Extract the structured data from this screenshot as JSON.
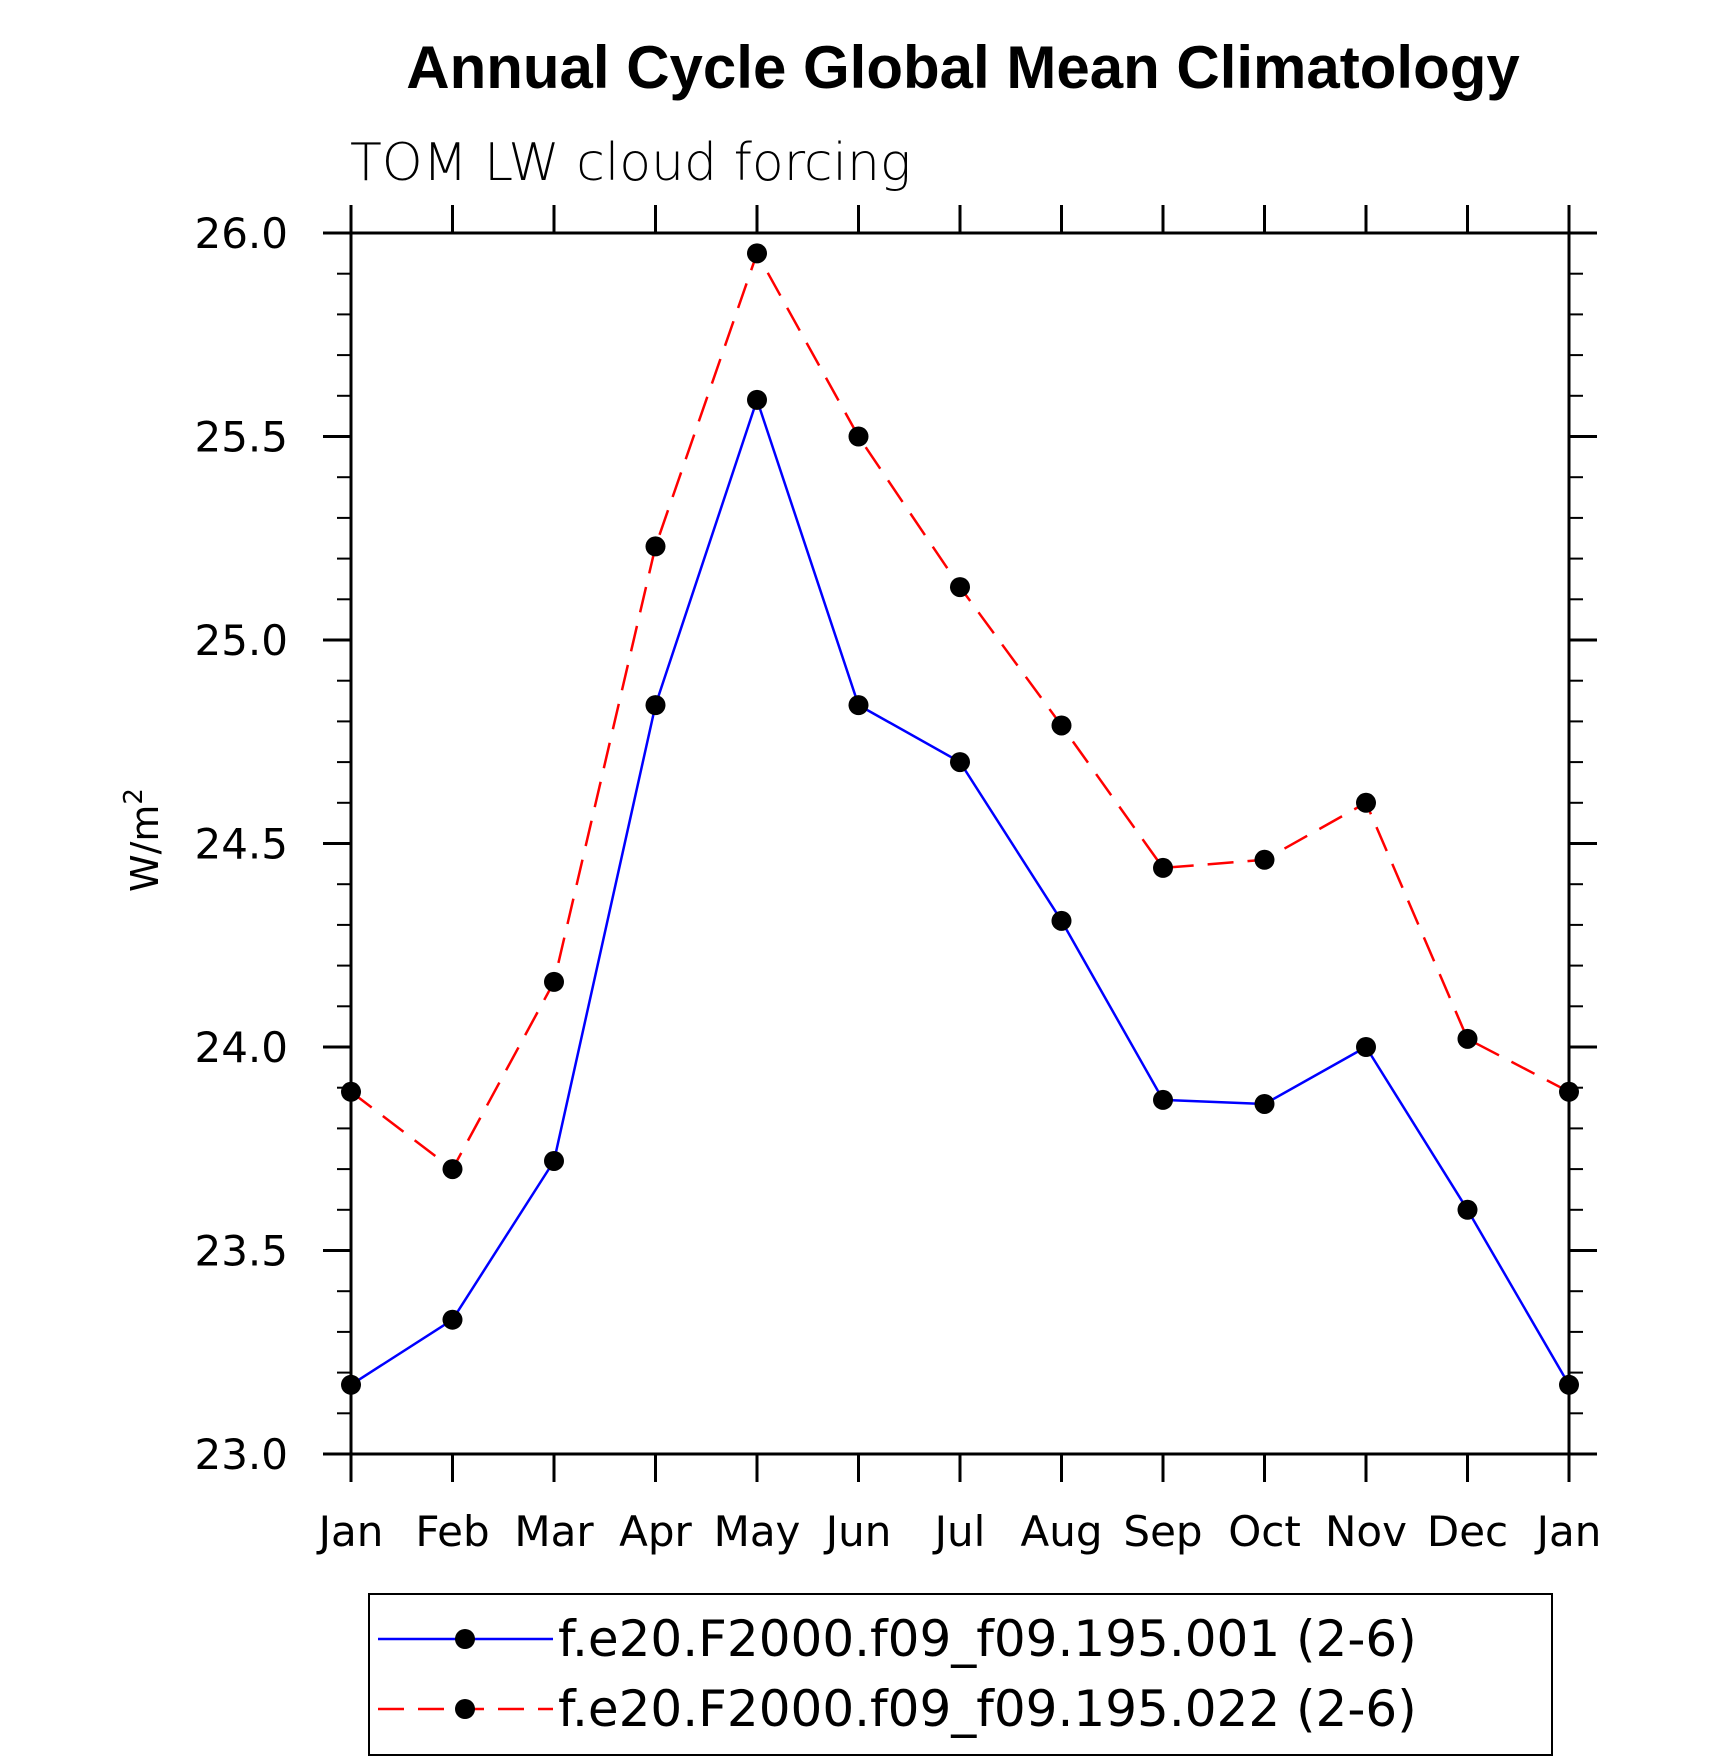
{
  "chart_data": {
    "type": "line",
    "title": "Annual Cycle Global Mean Climatology",
    "subtitle": "TOM LW cloud forcing",
    "ylabel": "W/m",
    "ylabel_superscript": "2",
    "xlabel": "",
    "categories": [
      "Jan",
      "Feb",
      "Mar",
      "Apr",
      "May",
      "Jun",
      "Jul",
      "Aug",
      "Sep",
      "Oct",
      "Nov",
      "Dec",
      "Jan"
    ],
    "ylim": [
      23.0,
      26.0
    ],
    "yticks": [
      "23.0",
      "23.5",
      "24.0",
      "24.5",
      "25.0",
      "25.5",
      "26.0"
    ],
    "grid": false,
    "legend_position": "bottom",
    "series": [
      {
        "name": "f.e20.F2000.f09_f09.195.001 (2-6)",
        "color": "#0000ff",
        "dash": "solid",
        "marker": "filled-circle",
        "values": [
          23.17,
          23.33,
          23.72,
          24.84,
          25.59,
          24.84,
          24.7,
          24.31,
          23.87,
          23.86,
          24.0,
          23.6,
          23.17
        ]
      },
      {
        "name": "f.e20.F2000.f09_f09.195.022 (2-6)",
        "color": "#ff0000",
        "dash": "dashed",
        "marker": "filled-circle",
        "values": [
          23.89,
          23.7,
          24.16,
          25.23,
          25.95,
          25.5,
          25.13,
          24.79,
          24.44,
          24.46,
          24.6,
          24.02,
          23.89
        ]
      }
    ]
  }
}
